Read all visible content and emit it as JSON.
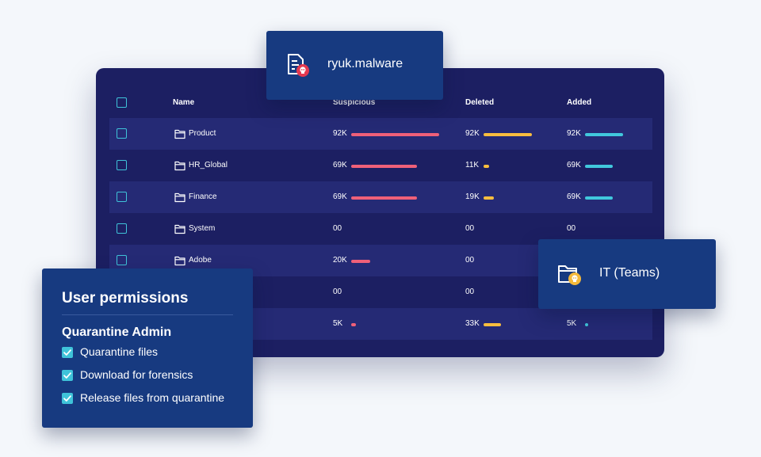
{
  "table": {
    "headers": {
      "name": "Name",
      "suspicious": "Suspicious",
      "deleted": "Deleted",
      "added": "Added"
    },
    "rows": [
      {
        "name": "Product",
        "suspicious": "92K",
        "deleted": "92K",
        "added": "92K",
        "suspicious_level": 1.0,
        "deleted_level": 0.74,
        "added_level": 0.66
      },
      {
        "name": "HR_Global",
        "suspicious": "69K",
        "deleted": "11K",
        "added": "69K",
        "suspicious_level": 0.75,
        "deleted_level": 0.09,
        "added_level": 0.49
      },
      {
        "name": "Finance",
        "suspicious": "69K",
        "deleted": "19K",
        "added": "69K",
        "suspicious_level": 0.75,
        "deleted_level": 0.16,
        "added_level": 0.49
      },
      {
        "name": "System",
        "suspicious": "00",
        "deleted": "00",
        "added": "00",
        "suspicious_level": 0,
        "deleted_level": 0,
        "added_level": 0
      },
      {
        "name": "Adobe",
        "suspicious": "20K",
        "deleted": "00",
        "added": "",
        "suspicious_level": 0.22,
        "deleted_level": 0,
        "added_level": 0
      },
      {
        "name": "",
        "suspicious": "00",
        "deleted": "00",
        "added": "",
        "suspicious_level": 0,
        "deleted_level": 0,
        "added_level": 0
      },
      {
        "name": "",
        "suspicious": "5K",
        "deleted": "33K",
        "added": "5K",
        "suspicious_level": 0.05,
        "deleted_level": 0.27,
        "added_level": 0.04
      }
    ]
  },
  "file_card": {
    "label": "ryuk.malware",
    "icon": "infected-file-icon"
  },
  "team_card": {
    "label": "IT (Teams)",
    "icon": "infected-folder-icon"
  },
  "permissions": {
    "title": "User permissions",
    "role": "Quarantine Admin",
    "items": [
      {
        "label": "Quarantine files",
        "checked": true
      },
      {
        "label": "Download for forensics",
        "checked": true
      },
      {
        "label": "Release files from quarantine",
        "checked": true
      }
    ]
  },
  "colors": {
    "panel": "#1c1f62",
    "row_alt": "#252a75",
    "card": "#173a80",
    "suspicious": "#ef6079",
    "deleted": "#f9bd3e",
    "added": "#41c8dd",
    "checkbox": "#3fc3d9",
    "badge_red": "#e53950",
    "badge_yellow": "#f5b93a"
  }
}
